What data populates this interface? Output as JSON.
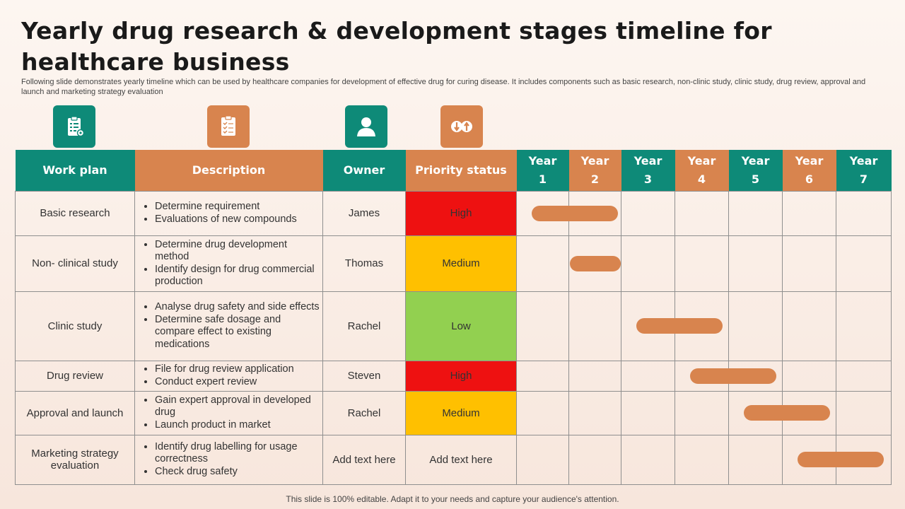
{
  "title": "Yearly drug research & development stages timeline for healthcare business",
  "subtitle": "Following slide demonstrates yearly timeline which can be used by healthcare companies for development of effective drug for curing disease. It includes components such as basic research, non-clinic study, clinic study, drug review, approval and launch and marketing strategy evaluation",
  "header_icons": [
    "clipboard-gear-icon",
    "checklist-icon",
    "person-icon",
    "up-down-arrows-icon"
  ],
  "headers": {
    "work_plan": "Work plan",
    "description": "Description",
    "owner": "Owner",
    "priority": "Priority status",
    "year_word": "Year",
    "years": [
      "1",
      "2",
      "3",
      "4",
      "5",
      "6",
      "7"
    ]
  },
  "rows": [
    {
      "plan": "Basic research",
      "desc": [
        "Determine requirement",
        "Evaluations of new compounds"
      ],
      "owner": "James",
      "priority": "High",
      "timeline_years": [
        1,
        2
      ]
    },
    {
      "plan": "Non- clinical study",
      "desc": [
        "Determine drug development method",
        "Identify design for drug commercial production"
      ],
      "owner": "Thomas",
      "priority": "Medium",
      "timeline_years": [
        2,
        2
      ]
    },
    {
      "plan": "Clinic study",
      "desc": [
        "Analyse drug safety and side effects",
        "Determine safe dosage and compare effect to existing medications"
      ],
      "owner": "Rachel",
      "priority": "Low",
      "timeline_years": [
        3,
        4
      ]
    },
    {
      "plan": "Drug review",
      "desc": [
        "File for drug review application",
        "Conduct expert review"
      ],
      "owner": "Steven",
      "priority": "High",
      "timeline_years": [
        4,
        5
      ]
    },
    {
      "plan": "Approval and launch",
      "desc": [
        "Gain expert approval in developed drug",
        "Launch product in market"
      ],
      "owner": "Rachel",
      "priority": "Medium",
      "timeline_years": [
        5,
        6
      ]
    },
    {
      "plan": "Marketing strategy evaluation",
      "desc": [
        "Identify drug labelling for usage correctness",
        "Check drug safety"
      ],
      "owner": "Add text here",
      "priority": "Add text here",
      "timeline_years": [
        6,
        7
      ]
    }
  ],
  "colors": {
    "teal": "#0e8a78",
    "orange": "#d8844e",
    "high": "#ee1111",
    "medium": "#ffc000",
    "low": "#92d050"
  },
  "footer": "This slide is 100% editable. Adapt it to your needs and capture your audience's attention."
}
